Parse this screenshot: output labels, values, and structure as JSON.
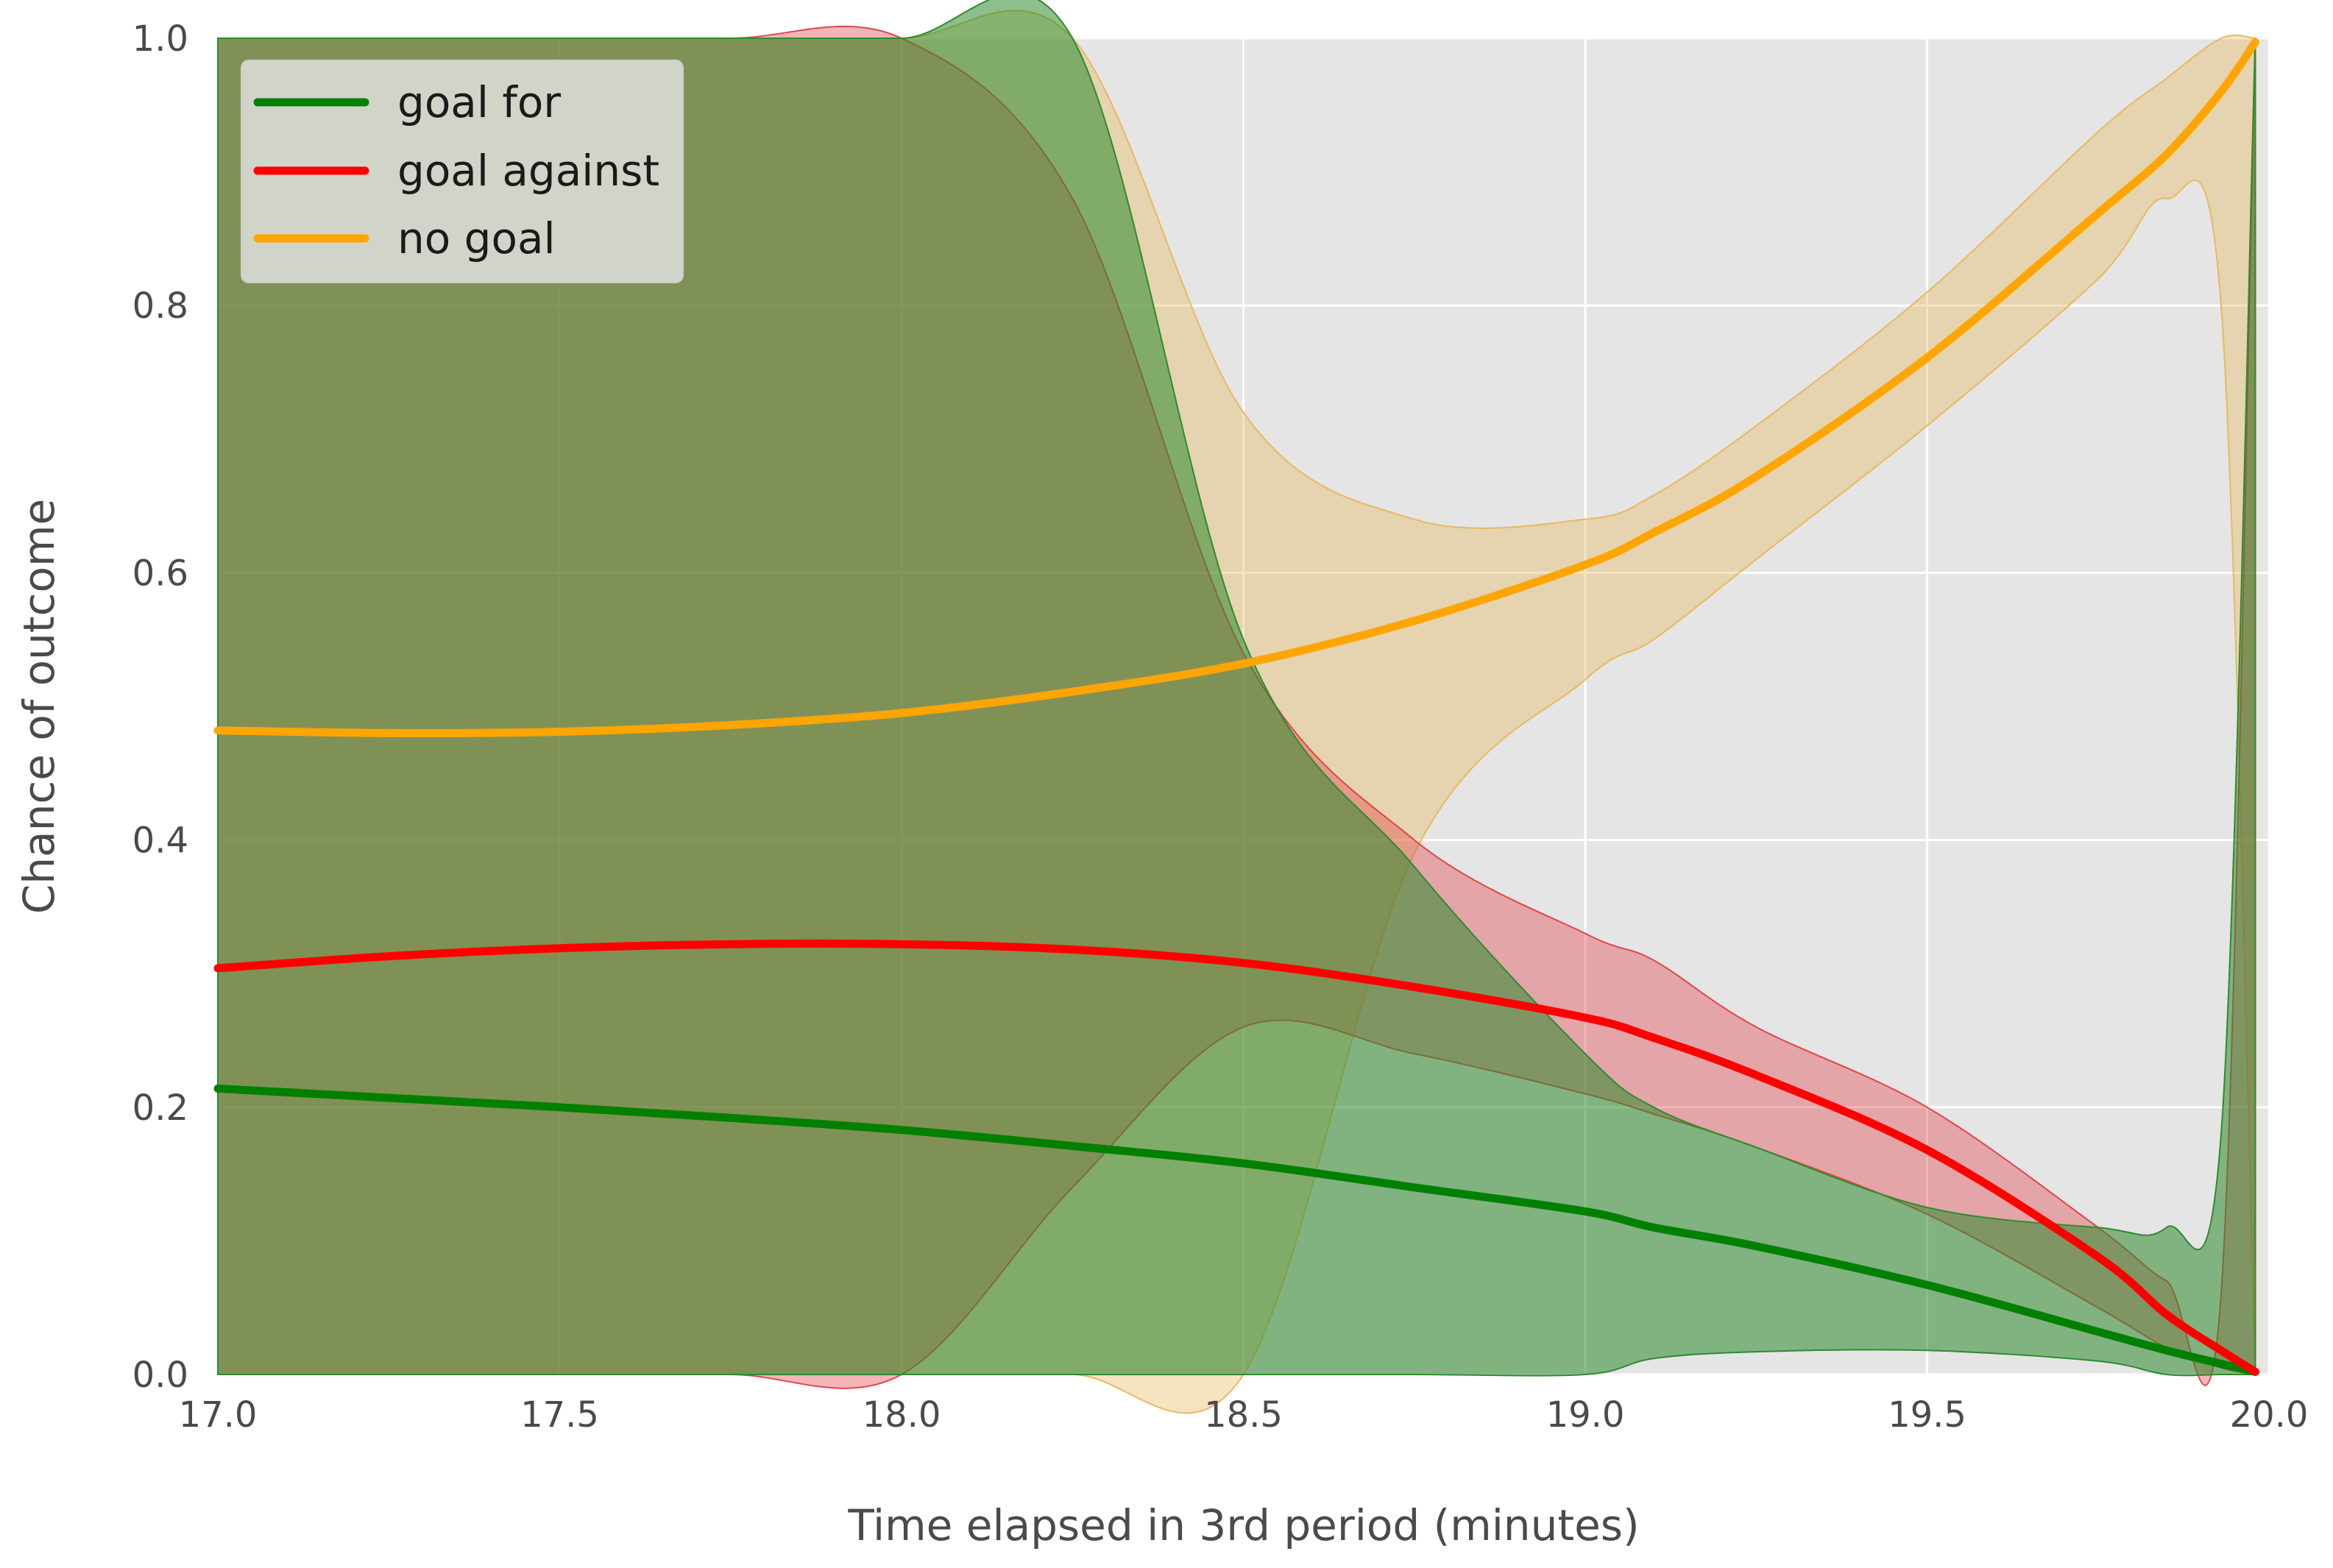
{
  "chart_data": {
    "type": "line",
    "title": "",
    "xlabel": "Time elapsed in 3rd period (minutes)",
    "ylabel": "Chance of outcome",
    "xlim": [
      17.0,
      20.0
    ],
    "ylim": [
      0.0,
      1.0
    ],
    "x_ticks": [
      "17.0",
      "17.5",
      "18.0",
      "18.5",
      "19.0",
      "19.5",
      "20.0"
    ],
    "y_ticks": [
      "0.0",
      "0.2",
      "0.4",
      "0.6",
      "0.8",
      "1.0"
    ],
    "grid": true,
    "background": "#e5e5e5",
    "legend_position": "top-left",
    "series": [
      {
        "name": "goal for",
        "color": "#008000",
        "band_color": "#2e8b2e",
        "x": [
          17.0,
          17.25,
          17.5,
          17.75,
          18.0,
          18.25,
          18.5,
          18.75,
          19.0,
          19.1,
          19.25,
          19.5,
          19.75,
          19.85,
          19.93,
          19.98
        ],
        "y": [
          0.214,
          0.207,
          0.2,
          0.192,
          0.183,
          0.171,
          0.158,
          0.14,
          0.122,
          0.11,
          0.096,
          0.067,
          0.032,
          0.018,
          0.008,
          0.002
        ],
        "lower": [
          0.0,
          0.0,
          0.0,
          0.0,
          0.0,
          0.0,
          0.0,
          0.0,
          0.0,
          0.012,
          0.017,
          0.018,
          0.01,
          0.0,
          0.0,
          0.0
        ],
        "upper": [
          1.0,
          1.0,
          1.0,
          1.0,
          1.0,
          1.0,
          0.55,
          0.38,
          0.24,
          0.2,
          0.17,
          0.125,
          0.11,
          0.11,
          0.18,
          1.0
        ]
      },
      {
        "name": "goal against",
        "color": "#ff0000",
        "band_color": "#e0454a",
        "x": [
          17.0,
          17.25,
          17.5,
          17.75,
          18.0,
          18.25,
          18.5,
          18.75,
          19.0,
          19.1,
          19.25,
          19.5,
          19.75,
          19.85,
          19.93,
          19.98
        ],
        "y": [
          0.304,
          0.313,
          0.319,
          0.322,
          0.322,
          0.318,
          0.308,
          0.29,
          0.267,
          0.252,
          0.224,
          0.168,
          0.088,
          0.045,
          0.018,
          0.002
        ],
        "lower": [
          0.0,
          0.0,
          0.0,
          0.0,
          0.0,
          0.14,
          0.26,
          0.24,
          0.21,
          0.195,
          0.17,
          0.12,
          0.05,
          0.02,
          0.005,
          0.0
        ],
        "upper": [
          1.0,
          1.0,
          1.0,
          1.0,
          1.0,
          0.88,
          0.54,
          0.4,
          0.33,
          0.31,
          0.26,
          0.2,
          0.11,
          0.07,
          0.06,
          1.0
        ]
      },
      {
        "name": "no goal",
        "color": "#ffa500",
        "band_color": "#e8b960",
        "x": [
          17.0,
          17.25,
          17.5,
          17.75,
          18.0,
          18.25,
          18.5,
          18.75,
          19.0,
          19.1,
          19.25,
          19.5,
          19.75,
          19.85,
          19.93,
          19.98
        ],
        "y": [
          0.482,
          0.48,
          0.481,
          0.486,
          0.495,
          0.511,
          0.532,
          0.564,
          0.606,
          0.63,
          0.672,
          0.761,
          0.869,
          0.913,
          0.96,
          0.997
        ],
        "lower": [
          0.0,
          0.0,
          0.0,
          0.0,
          0.0,
          0.0,
          0.0,
          0.39,
          0.52,
          0.55,
          0.61,
          0.71,
          0.82,
          0.88,
          0.8,
          0.0
        ],
        "upper": [
          1.0,
          1.0,
          1.0,
          1.0,
          1.0,
          1.0,
          0.72,
          0.64,
          0.64,
          0.658,
          0.71,
          0.81,
          0.93,
          0.97,
          1.0,
          1.0
        ]
      }
    ]
  }
}
